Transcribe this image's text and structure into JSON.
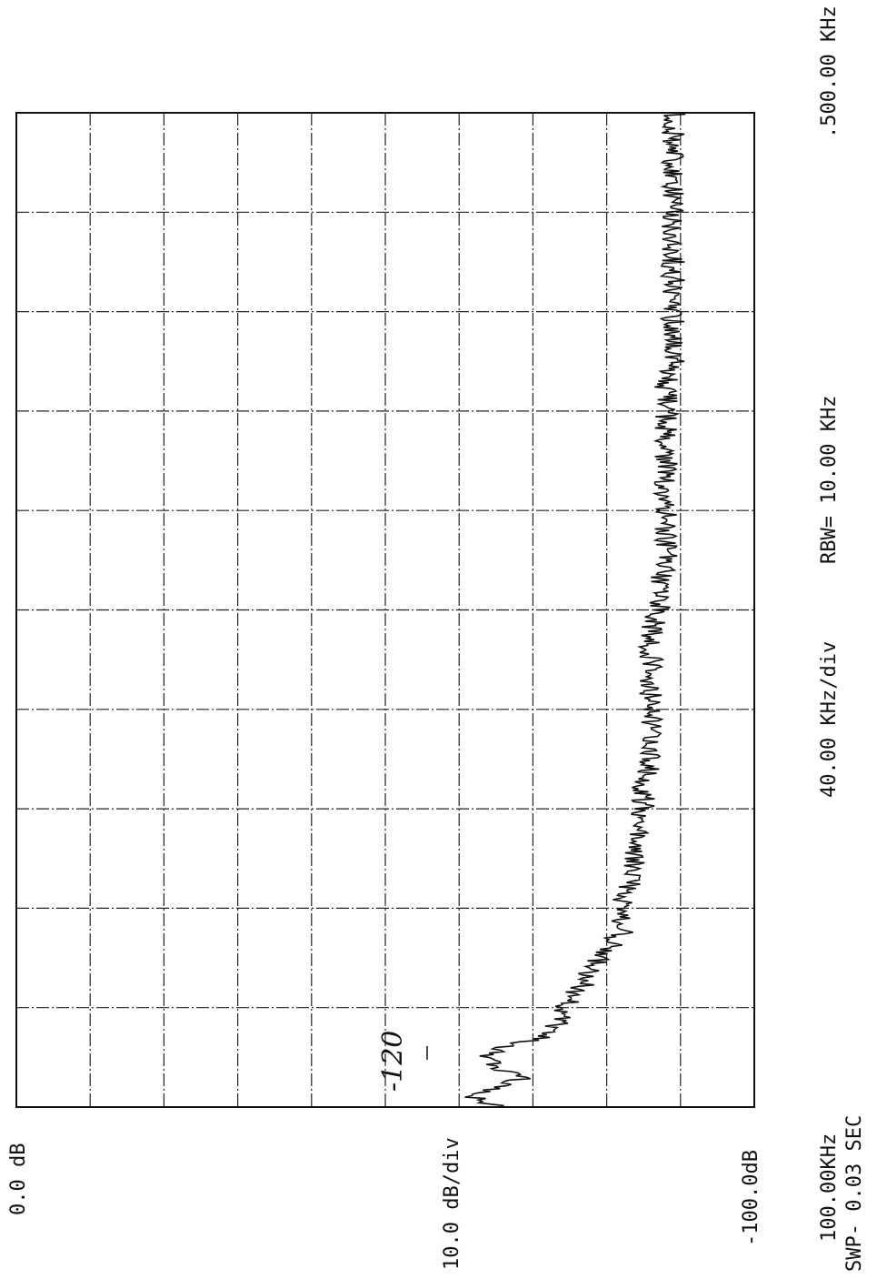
{
  "chart_data": {
    "type": "line",
    "title": "",
    "x_axis": {
      "label": "40.00 KHz/div",
      "start_label": "100.00KHz",
      "stop_label": ".500.00 KHz",
      "range_khz": [
        100,
        500
      ],
      "divisions": 10
    },
    "y_axis": {
      "label": "10.0 dB/div",
      "top_label": "0.0 dB",
      "bottom_label": "-100.0dB",
      "range_db": [
        -100,
        0
      ],
      "divisions": 10
    },
    "rbw_label": "RBW= 10.00 KHz",
    "sweep_label": "SWP- 0.03 SEC",
    "annotation": "-120",
    "grid": true,
    "orientation": "rotated-90",
    "series": [
      {
        "x_khz": [
          100,
          104,
          108,
          112,
          116,
          120,
          124,
          128,
          132,
          140,
          150,
          160,
          170,
          180,
          190,
          200,
          210,
          220,
          230,
          240,
          250,
          260,
          270,
          280,
          290,
          300,
          310,
          320,
          330,
          340,
          350,
          360,
          370,
          380,
          390,
          400,
          410,
          420,
          430,
          440,
          450,
          460,
          470,
          480,
          490,
          500
        ],
        "y_db": [
          -66,
          -62,
          -65,
          -69,
          -65,
          -64,
          -66,
          -71,
          -73,
          -74,
          -77,
          -79,
          -82,
          -82,
          -83,
          -84,
          -84,
          -85,
          -85,
          -86,
          -86,
          -86,
          -86,
          -86,
          -86,
          -87,
          -87,
          -88,
          -88,
          -88,
          -88,
          -88,
          -88,
          -88,
          -88,
          -89,
          -89,
          -89,
          -89,
          -89,
          -89,
          -89,
          -89,
          -89,
          -89,
          -89
        ]
      }
    ]
  }
}
